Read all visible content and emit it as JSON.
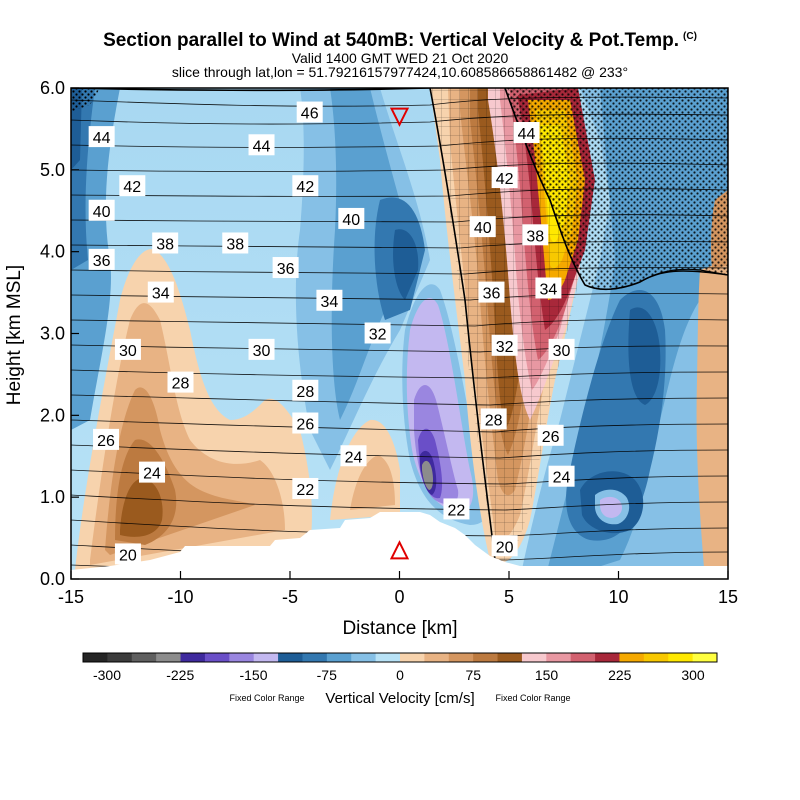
{
  "title": "Section parallel to Wind at 540mB: Vertical Velocity & Pot.Temp.",
  "title_symbol": "(C)",
  "valid_text": "Valid 1400 GMT WED 21 Oct 2020",
  "slice_text": "slice through lat,lon = 51.79216157977424,10.608586658861482 @ 233°",
  "chart_data": {
    "type": "heatmap",
    "xlabel": "Distance [km]",
    "ylabel": "Height [km MSL]",
    "xlim": [
      -15,
      15
    ],
    "ylim": [
      0,
      6
    ],
    "x_ticks": [
      -15,
      -10,
      -5,
      0,
      5,
      10,
      15
    ],
    "x_tick_labels": [
      "-15",
      "-10",
      "-5",
      "0",
      "5",
      "10",
      "15"
    ],
    "y_ticks": [
      0,
      1,
      2,
      3,
      4,
      5,
      6
    ],
    "y_tick_labels": [
      "0.0",
      "1.0",
      "2.0",
      "3.0",
      "4.0",
      "5.0",
      "6.0"
    ],
    "colorbar": {
      "label": "Vertical Velocity [cm/s]",
      "left_note": "Fixed Color Range",
      "right_note": "Fixed Color Range",
      "tick_values": [
        -300,
        -225,
        -150,
        -75,
        0,
        75,
        150,
        225,
        300
      ],
      "tick_labels": [
        "-300",
        "-225",
        "-150",
        "-75",
        "0",
        "75",
        "150",
        "225",
        "300"
      ],
      "colors": [
        "#252525",
        "#3c3c3c",
        "#5f5f5f",
        "#8c8c8c",
        "#3f2a9e",
        "#6a4fc8",
        "#9a86e0",
        "#c3b8f0",
        "#1e5d96",
        "#3378b0",
        "#5aa0d0",
        "#86c0e6",
        "#b8e2f6",
        "#f7d3ad",
        "#e8b384",
        "#d49660",
        "#bc7a40",
        "#9a5a1e",
        "#f7c9ce",
        "#e898a2",
        "#d2616f",
        "#a8283a",
        "#f5a900",
        "#f8c800",
        "#ffe800",
        "#ffff40"
      ]
    },
    "theta_labels": [
      {
        "x": -13.6,
        "y": 5.4,
        "text": "44"
      },
      {
        "x": -12.2,
        "y": 4.8,
        "text": "42"
      },
      {
        "x": -13.6,
        "y": 4.5,
        "text": "40"
      },
      {
        "x": -10.7,
        "y": 4.1,
        "text": "38"
      },
      {
        "x": -13.6,
        "y": 3.9,
        "text": "36"
      },
      {
        "x": -10.9,
        "y": 3.5,
        "text": "34"
      },
      {
        "x": -12.4,
        "y": 2.8,
        "text": "30"
      },
      {
        "x": -10.0,
        "y": 2.4,
        "text": "28"
      },
      {
        "x": -13.4,
        "y": 1.7,
        "text": "26"
      },
      {
        "x": -11.3,
        "y": 1.3,
        "text": "24"
      },
      {
        "x": -12.4,
        "y": 0.3,
        "text": "20"
      },
      {
        "x": -4.1,
        "y": 5.7,
        "text": "46"
      },
      {
        "x": -6.3,
        "y": 5.3,
        "text": "44"
      },
      {
        "x": -4.3,
        "y": 4.8,
        "text": "42"
      },
      {
        "x": -2.2,
        "y": 4.4,
        "text": "40"
      },
      {
        "x": -7.5,
        "y": 4.1,
        "text": "38"
      },
      {
        "x": -5.2,
        "y": 3.8,
        "text": "36"
      },
      {
        "x": -3.2,
        "y": 3.4,
        "text": "34"
      },
      {
        "x": -1.0,
        "y": 3.0,
        "text": "32"
      },
      {
        "x": -6.3,
        "y": 2.8,
        "text": "30"
      },
      {
        "x": -4.3,
        "y": 2.3,
        "text": "28"
      },
      {
        "x": -4.3,
        "y": 1.9,
        "text": "26"
      },
      {
        "x": -2.1,
        "y": 1.5,
        "text": "24"
      },
      {
        "x": -4.3,
        "y": 1.1,
        "text": "22"
      },
      {
        "x": 2.6,
        "y": 0.85,
        "text": "22"
      },
      {
        "x": 4.8,
        "y": 0.4,
        "text": "20"
      },
      {
        "x": 5.8,
        "y": 5.45,
        "text": "44"
      },
      {
        "x": 4.8,
        "y": 4.9,
        "text": "42"
      },
      {
        "x": 3.8,
        "y": 4.3,
        "text": "40"
      },
      {
        "x": 6.2,
        "y": 4.2,
        "text": "38"
      },
      {
        "x": 4.2,
        "y": 3.5,
        "text": "36"
      },
      {
        "x": 6.8,
        "y": 3.55,
        "text": "34"
      },
      {
        "x": 4.8,
        "y": 2.85,
        "text": "32"
      },
      {
        "x": 7.4,
        "y": 2.8,
        "text": "30"
      },
      {
        "x": 4.3,
        "y": 1.95,
        "text": "28"
      },
      {
        "x": 6.9,
        "y": 1.75,
        "text": "26"
      },
      {
        "x": 7.4,
        "y": 1.25,
        "text": "24"
      }
    ],
    "markers": [
      {
        "shape": "triangle-down",
        "x": 0.0,
        "y": 5.65,
        "color": "#e00000"
      },
      {
        "shape": "triangle-up",
        "x": 0.0,
        "y": 0.35,
        "color": "#e00000"
      }
    ]
  }
}
